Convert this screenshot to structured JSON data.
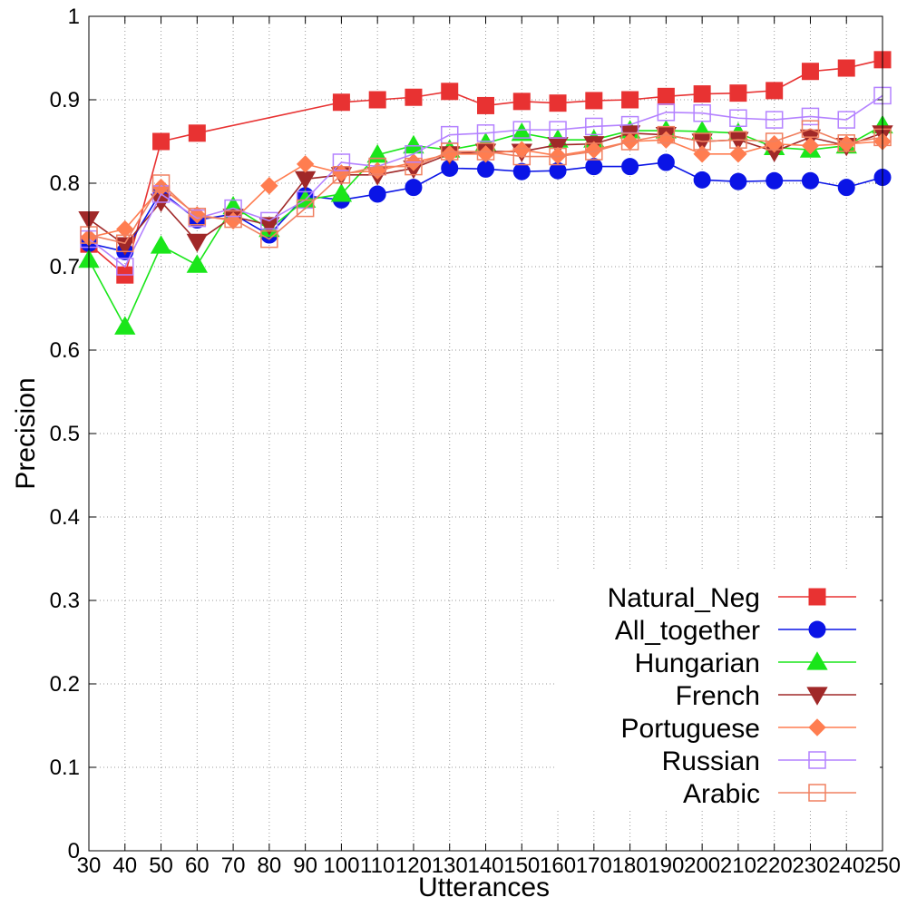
{
  "chart_data": {
    "type": "line",
    "xlabel": "Utterances",
    "ylabel": "Precision",
    "x": [
      30,
      40,
      50,
      60,
      70,
      80,
      90,
      100,
      110,
      120,
      130,
      140,
      150,
      160,
      170,
      180,
      190,
      200,
      210,
      220,
      230,
      240,
      250
    ],
    "xlim": [
      30,
      250
    ],
    "ylim": [
      0,
      1
    ],
    "yticks": [
      0,
      0.1,
      0.2,
      0.3,
      0.4,
      0.5,
      0.6,
      0.7,
      0.8,
      0.9,
      1
    ],
    "ytick_labels": [
      "0",
      "0.1",
      "0.2",
      "0.3",
      "0.4",
      "0.5",
      "0.6",
      "0.7",
      "0.8",
      "0.9",
      "1"
    ],
    "xtick_labels": [
      "30",
      "40",
      "50",
      "60",
      "70",
      "80",
      "90",
      "100",
      "110",
      "120",
      "130",
      "140",
      "150",
      "160",
      "170",
      "180",
      "190",
      "200",
      "210",
      "220",
      "230",
      "240",
      "250"
    ],
    "grid": true,
    "legend_position": "bottom-right",
    "series": [
      {
        "name": "Natural_Neg",
        "color": "#e83232",
        "marker": "square-filled",
        "x": [
          30,
          40,
          50,
          60,
          100,
          110,
          120,
          130,
          140,
          150,
          160,
          170,
          180,
          190,
          200,
          210,
          220,
          230,
          240,
          250
        ],
        "values": [
          0.727,
          0.69,
          0.85,
          0.86,
          0.897,
          0.9,
          0.903,
          0.91,
          0.893,
          0.898,
          0.896,
          0.899,
          0.9,
          0.904,
          0.907,
          0.908,
          0.911,
          0.934,
          0.938,
          0.948
        ]
      },
      {
        "name": "All_together",
        "color": "#0a14e6",
        "marker": "circle-filled",
        "values": [
          0.728,
          0.718,
          0.79,
          0.756,
          0.763,
          0.738,
          0.785,
          0.78,
          0.787,
          0.795,
          0.818,
          0.817,
          0.814,
          0.815,
          0.82,
          0.82,
          0.825,
          0.804,
          0.802,
          0.803,
          0.803,
          0.795,
          0.807
        ]
      },
      {
        "name": "Hungarian",
        "color": "#1ae61a",
        "marker": "triangle-up-filled",
        "values": [
          0.708,
          0.628,
          0.725,
          0.702,
          0.772,
          0.745,
          0.78,
          0.787,
          0.834,
          0.845,
          0.84,
          0.848,
          0.86,
          0.852,
          0.852,
          0.863,
          0.863,
          0.862,
          0.86,
          0.843,
          0.84,
          0.845,
          0.869
        ]
      },
      {
        "name": "French",
        "color": "#a02828",
        "marker": "triangle-down-filled",
        "values": [
          0.757,
          0.726,
          0.778,
          0.73,
          0.76,
          0.75,
          0.805,
          0.81,
          0.81,
          0.818,
          0.835,
          0.838,
          0.838,
          0.846,
          0.847,
          0.86,
          0.858,
          0.85,
          0.852,
          0.838,
          0.855,
          0.845,
          0.86
        ]
      },
      {
        "name": "Portuguese",
        "color": "#ff7d50",
        "marker": "diamond-filled",
        "values": [
          0.735,
          0.745,
          0.795,
          0.762,
          0.755,
          0.797,
          0.823,
          0.812,
          0.815,
          0.825,
          0.835,
          0.835,
          0.84,
          0.833,
          0.84,
          0.85,
          0.852,
          0.835,
          0.835,
          0.847,
          0.845,
          0.847,
          0.85
        ]
      },
      {
        "name": "Russian",
        "color": "#b482ff",
        "marker": "square-open",
        "values": [
          0.733,
          0.7,
          0.787,
          0.758,
          0.77,
          0.755,
          0.78,
          0.825,
          0.82,
          0.835,
          0.858,
          0.86,
          0.864,
          0.864,
          0.868,
          0.87,
          0.885,
          0.884,
          0.878,
          0.876,
          0.88,
          0.876,
          0.905
        ]
      },
      {
        "name": "Arabic",
        "color": "#f08060",
        "marker": "square-open",
        "values": [
          0.738,
          0.728,
          0.8,
          0.76,
          0.757,
          0.733,
          0.77,
          0.81,
          0.82,
          0.82,
          0.838,
          0.838,
          0.832,
          0.832,
          0.838,
          0.85,
          0.858,
          0.85,
          0.852,
          0.85,
          0.865,
          0.848,
          0.855
        ]
      }
    ]
  }
}
